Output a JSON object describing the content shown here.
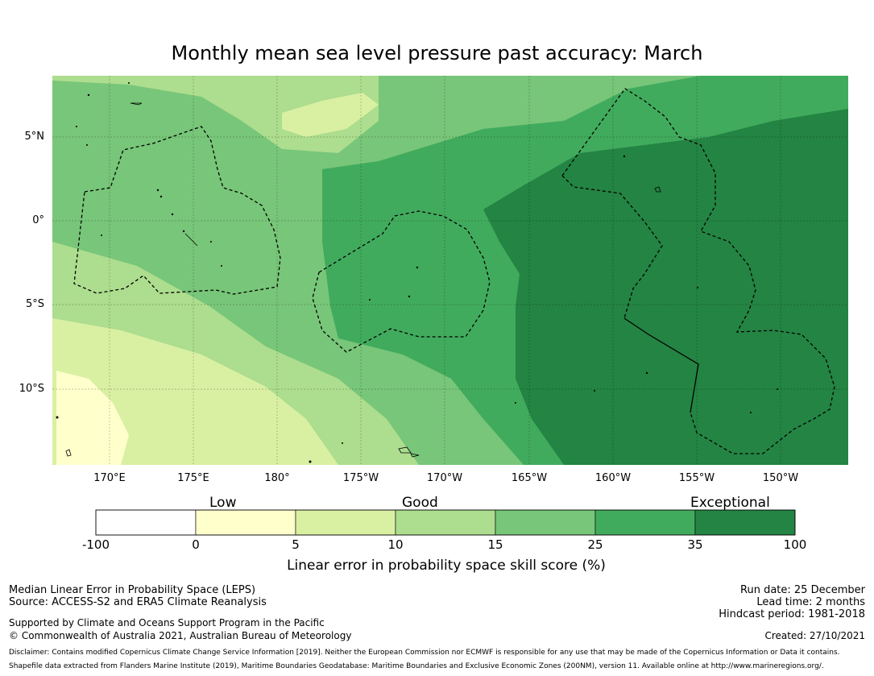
{
  "title": "Monthly mean sea level pressure past accuracy: March",
  "lat_ticks": [
    "5°N",
    "0°",
    "5°S",
    "10°S"
  ],
  "lon_ticks": [
    "170°E",
    "175°E",
    "180°",
    "175°W",
    "170°W",
    "165°W",
    "160°W",
    "155°W",
    "150°W"
  ],
  "legend": {
    "categories": [
      "Low",
      "Good",
      "Exceptional"
    ],
    "bounds": [
      "-100",
      "0",
      "5",
      "10",
      "15",
      "25",
      "35",
      "100"
    ],
    "colors": [
      "#ffffff",
      "#ffffcc",
      "#d9f0a3",
      "#addd8e",
      "#78c679",
      "#41ab5d",
      "#238443"
    ],
    "label": "Linear error in probability space skill score (%)"
  },
  "footer": {
    "left": [
      "Median Linear Error in Probability Space (LEPS)",
      "Source: ACCESS-S2 and ERA5 Climate Reanalysis",
      "Supported by Climate and Oceans Support Program in the Pacific",
      "© Commonwealth of Australia 2021, Australian Bureau of Meteorology"
    ],
    "right": [
      "Run date: 25 December",
      "Lead time: 2 months",
      "Hindcast period: 1981-2018",
      "Created: 27/10/2021"
    ],
    "disclaimer": "Disclaimer: Contains modified Copernicus Climate Change Service Information [2019]. Neither the European Commission nor ECMWF is responsible for any use that may be made of the Copernicus Information or Data it contains.",
    "shapefile": "Shapefile data extracted from Flanders Marine Institute (2019), Maritime Boundaries Geodatabase: Maritime Boundaries and Exclusive Economic Zones (200NM), version 11. Available online at http://www.marineregions.org/."
  }
}
